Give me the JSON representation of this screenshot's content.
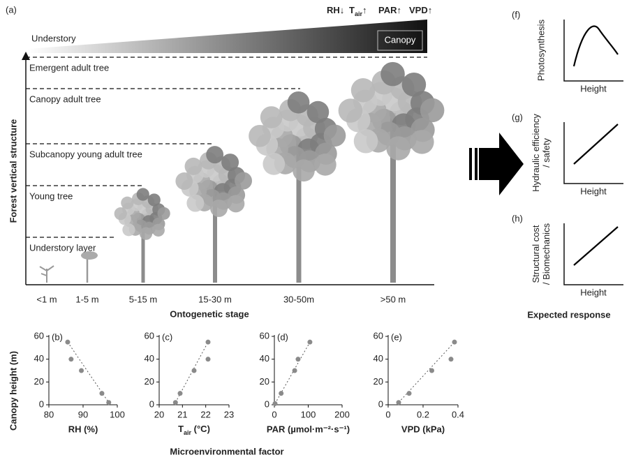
{
  "figure": {
    "panel_a": {
      "label": "(a)",
      "factors": [
        {
          "main": "RH",
          "rest": "↓"
        },
        {
          "main": "T",
          "sub": "air",
          "rest": "↑"
        },
        {
          "main": "PAR",
          "rest": "↑"
        },
        {
          "main": "VPD",
          "rest": "↑"
        }
      ],
      "understory": "Understory",
      "canopy": "Canopy",
      "layers": [
        "Emergent adult tree",
        "Canopy adult tree",
        "Subcanopy young adult tree",
        "Young tree",
        "Understory layer"
      ],
      "y_label": "Forest vertical structure",
      "stages": [
        "<1 m",
        "1-5 m",
        "5-15 m",
        "15-30 m",
        "30-50m",
        ">50 m"
      ],
      "x_label": "Ontogenetic stage"
    },
    "panels_right": [
      {
        "label": "(f)",
        "y_label": [
          "Photosynthesis"
        ],
        "x_label": "Height"
      },
      {
        "label": "(g)",
        "y_label": [
          "Hydraulic efficiency",
          "/ safety"
        ],
        "x_label": "Height"
      },
      {
        "label": "(h)",
        "y_label": [
          "Structural cost",
          "/ Biomechanics"
        ],
        "x_label": "Height"
      }
    ],
    "expected": "Expected response",
    "shared_y_label": "Canopy height (m)",
    "shared_x_label": "Microenvironmental factor"
  },
  "chart_data": [
    {
      "type": "scatter",
      "label": "(b)",
      "xlabel": "RH (%)",
      "color": "#8a8a8a",
      "x": [
        85.5,
        86.5,
        89.5,
        95.5,
        97.5
      ],
      "y": [
        55,
        40,
        30,
        10,
        2
      ],
      "xlim": [
        80,
        100
      ],
      "xticks": [
        80,
        90,
        100
      ],
      "ylim": [
        0,
        60
      ],
      "yticks": [
        0,
        20,
        40,
        60
      ]
    },
    {
      "type": "scatter",
      "label": "(c)",
      "xlabel": {
        "main": "T",
        "sub": "air",
        "rest": " (°C)"
      },
      "color": "#8a8a8a",
      "x": [
        20.7,
        20.9,
        21.5,
        22.1,
        22.1
      ],
      "y": [
        2,
        10,
        30,
        40,
        55
      ],
      "xlim": [
        20,
        23
      ],
      "xticks": [
        20,
        21,
        22,
        23
      ],
      "ylim": [
        0,
        60
      ],
      "yticks": [
        0,
        20,
        40,
        60
      ]
    },
    {
      "type": "scatter",
      "label": "(d)",
      "xlabel": "PAR (µmol·m⁻²·s⁻¹)",
      "color": "#8a8a8a",
      "x": [
        2,
        20,
        60,
        70,
        105
      ],
      "y": [
        1,
        10,
        30,
        40,
        55
      ],
      "xlim": [
        0,
        200
      ],
      "xticks": [
        0,
        100,
        200
      ],
      "ylim": [
        0,
        60
      ],
      "yticks": [
        0,
        20,
        40,
        60
      ]
    },
    {
      "type": "scatter",
      "label": "(e)",
      "xlabel": "VPD (kPa)",
      "color": "#8a8a8a",
      "x": [
        0.06,
        0.12,
        0.25,
        0.36,
        0.38
      ],
      "y": [
        2,
        10,
        30,
        40,
        55
      ],
      "xlim": [
        0,
        0.4
      ],
      "xticks": [
        0,
        0.2,
        0.4
      ],
      "ylim": [
        0,
        60
      ],
      "yticks": [
        0,
        20,
        40,
        60
      ]
    }
  ]
}
